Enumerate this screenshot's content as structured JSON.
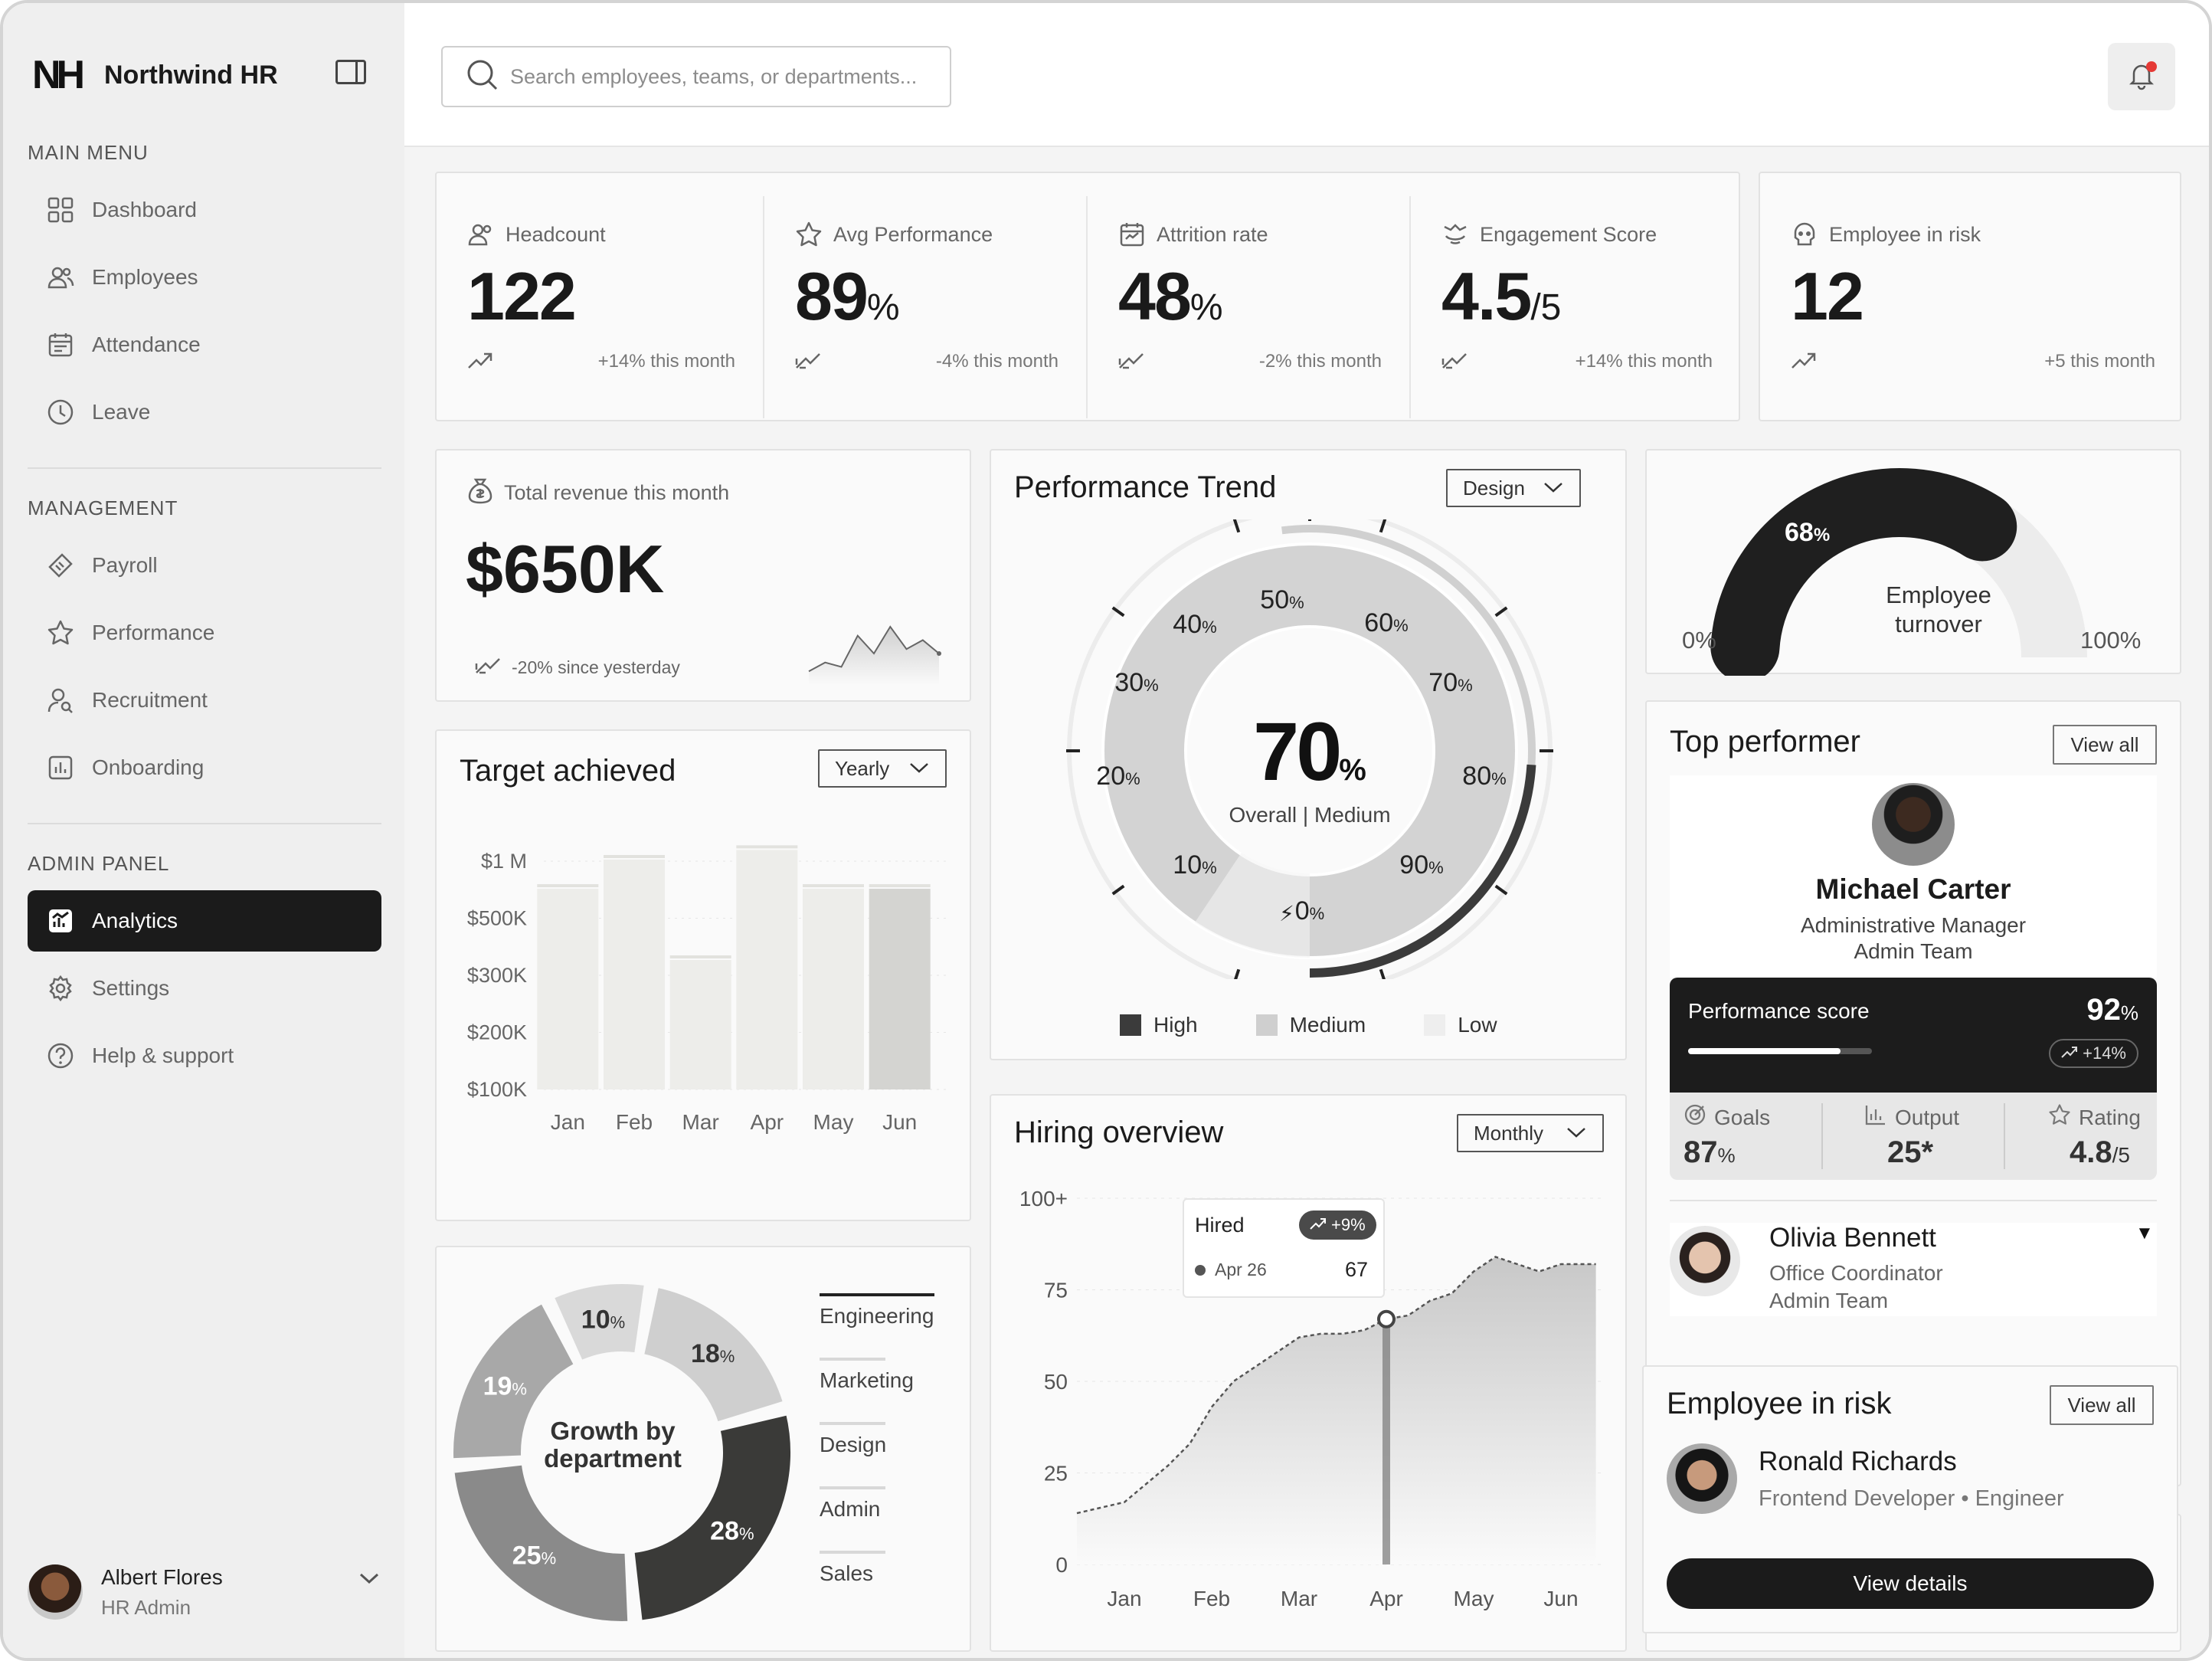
{
  "brand": {
    "logo": "NH",
    "name": "Northwind HR"
  },
  "sidebar": {
    "main_menu_title": "MAIN MENU",
    "main_menu": [
      {
        "label": "Dashboard",
        "icon": "grid-icon"
      },
      {
        "label": "Employees",
        "icon": "users-icon"
      },
      {
        "label": "Attendance",
        "icon": "calendar-icon"
      },
      {
        "label": "Leave",
        "icon": "clock-icon"
      }
    ],
    "management_title": "MANAGEMENT",
    "management": [
      {
        "label": "Payroll",
        "icon": "ticket-icon"
      },
      {
        "label": "Performance",
        "icon": "star-icon"
      },
      {
        "label": "Recruitment",
        "icon": "user-search-icon"
      },
      {
        "label": "Onboarding",
        "icon": "chart-box-icon"
      }
    ],
    "admin_title": "ADMIN PANEL",
    "admin": [
      {
        "label": "Analytics",
        "icon": "analytics-icon",
        "active": true
      },
      {
        "label": "Settings",
        "icon": "gear-icon"
      },
      {
        "label": "Help & support",
        "icon": "help-icon"
      }
    ],
    "user": {
      "name": "Albert Flores",
      "role": "HR Admin"
    }
  },
  "search": {
    "placeholder": "Search employees, teams, or departments..."
  },
  "stats": [
    {
      "label": "Headcount",
      "value": "122",
      "unit": "",
      "change": "+14% this month",
      "direction": "up"
    },
    {
      "label": "Avg Performance",
      "value": "89",
      "unit": "%",
      "change": "-4% this month",
      "direction": "down"
    },
    {
      "label": "Attrition rate",
      "value": "48",
      "unit": "%",
      "change": "-2% this month",
      "direction": "down"
    },
    {
      "label": "Engagement Score",
      "value": "4.5",
      "unit": "/5",
      "change": "+14% this month",
      "direction": "down"
    },
    {
      "label": "Employee in risk",
      "value": "12",
      "unit": "",
      "change": "+5 this month",
      "direction": "up"
    }
  ],
  "revenue": {
    "label": "Total revenue this month",
    "value": "$650K",
    "change": "-20% since yesterday"
  },
  "target": {
    "title": "Target achieved",
    "period": "Yearly"
  },
  "perf_trend": {
    "title": "Performance Trend",
    "filter": "Design",
    "value": "70",
    "unit": "%",
    "caption": "Overall | Medium",
    "ticks": [
      "0",
      "10",
      "20",
      "30",
      "40",
      "50",
      "60",
      "70",
      "80",
      "90"
    ],
    "legend": [
      "High",
      "Medium",
      "Low"
    ]
  },
  "turnover": {
    "label_line1": "Employee",
    "label_line2": "turnover",
    "value": "68",
    "min": "0%",
    "max": "100%"
  },
  "top_performer": {
    "title": "Top performer",
    "view_all": "View all",
    "name": "Michael Carter",
    "role": "Administrative Manager",
    "team": "Admin Team",
    "score_label": "Performance score",
    "score": "92",
    "score_change": "+14%",
    "metrics": [
      {
        "label": "Goals",
        "value": "87",
        "unit": "%"
      },
      {
        "label": "Output",
        "value": "25*",
        "unit": ""
      },
      {
        "label": "Rating",
        "value": "4.8",
        "unit": "/5"
      }
    ],
    "second": {
      "name": "Olivia Bennett",
      "role": "Office Coordinator",
      "team": "Admin Team"
    }
  },
  "hiring": {
    "title": "Hiring overview",
    "period": "Monthly",
    "tooltip_title": "Hired",
    "tooltip_change": "+9%",
    "tooltip_date": "Apr 26",
    "tooltip_value": "67"
  },
  "growth": {
    "center_line1": "Growth by",
    "center_line2": "department"
  },
  "risk": {
    "title": "Employee in risk",
    "view_all": "View all",
    "name": "Ronald Richards",
    "role": "Frontend Developer • Engineer",
    "button": "View details"
  },
  "chart_data": [
    {
      "type": "bar",
      "title": "Target achieved",
      "categories": [
        "Jan",
        "Feb",
        "Mar",
        "Apr",
        "May",
        "Jun"
      ],
      "values": [
        620,
        710,
        400,
        740,
        620,
        620
      ],
      "ytick_labels": [
        "$1 M",
        "$500K",
        "$300K",
        "$200K",
        "$100K"
      ],
      "colors": [
        "#ededea",
        "#ededea",
        "#ededea",
        "#ededea",
        "#ededea",
        "#d4d4d1"
      ]
    },
    {
      "type": "area",
      "title": "Hiring overview",
      "categories": [
        "Jan",
        "Feb",
        "Mar",
        "Apr",
        "May",
        "Jun"
      ],
      "x": [
        0.0,
        0.25,
        0.5,
        0.75,
        1.0,
        1.25,
        1.5,
        1.75,
        2.0,
        2.25,
        2.5,
        2.75,
        3.0,
        3.25,
        3.5,
        3.75,
        4.0,
        4.25,
        4.5,
        4.75,
        5.0,
        5.4
      ],
      "y": [
        17,
        22,
        27,
        33,
        43,
        50,
        54,
        58,
        62,
        63,
        63,
        64,
        67,
        68,
        72,
        74,
        80,
        84,
        82,
        80,
        82,
        82
      ],
      "ytick_labels": [
        "100+",
        "75",
        "50",
        "25",
        "0"
      ],
      "ylim": [
        0,
        100
      ],
      "highlight": {
        "x": 3.0,
        "y": 67
      }
    },
    {
      "type": "pie",
      "title": "Growth by department",
      "series": [
        {
          "name": "Engineering",
          "value": 28,
          "color": "#3a3a38"
        },
        {
          "name": "Marketing",
          "value": 18,
          "color": "#cfcfcf"
        },
        {
          "name": "Design",
          "value": 10,
          "color": "#d9d9d9"
        },
        {
          "name": "Admin",
          "value": 19,
          "color": "#a8a8a8"
        },
        {
          "name": "Sales",
          "value": 25,
          "color": "#8a8a8a"
        }
      ]
    },
    {
      "type": "line",
      "title": "Total revenue this month",
      "values": [
        2,
        4,
        3,
        10,
        6,
        12,
        7,
        9,
        6
      ]
    }
  ]
}
